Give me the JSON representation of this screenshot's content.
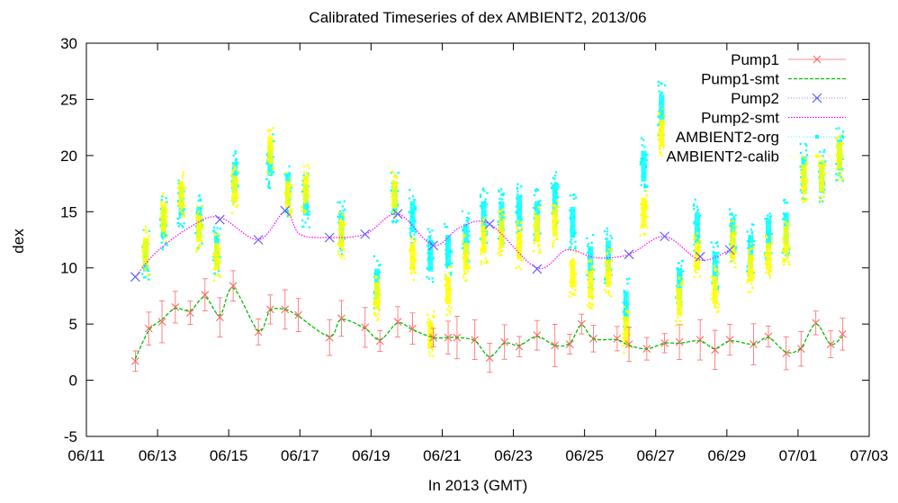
{
  "chart_data": {
    "type": "line",
    "title": "Calibrated Timeseries of dex AMBIENT2, 2013/06",
    "xlabel": "In 2013 (GMT)",
    "ylabel": "dex",
    "xlim": [
      "2013-06-11",
      "2013-07-03"
    ],
    "ylim": [
      -5,
      30
    ],
    "x_ticks": [
      "06/11",
      "06/13",
      "06/15",
      "06/17",
      "06/19",
      "06/21",
      "06/23",
      "06/25",
      "06/27",
      "06/29",
      "07/01",
      "07/03"
    ],
    "y_ticks": [
      "-5",
      "0",
      "5",
      "10",
      "15",
      "20",
      "25",
      "30"
    ],
    "legend_position": "top-right",
    "grid": false,
    "series": [
      {
        "name": "Pump1",
        "style": "points-errorbars",
        "color": "#ff6666",
        "x": [
          "2013-06-12T09:00",
          "2013-06-12T18:00",
          "2013-06-13T03:00",
          "2013-06-13T12:00",
          "2013-06-13T22:00",
          "2013-06-14T08:00",
          "2013-06-14T18:00",
          "2013-06-15T03:00",
          "2013-06-15T20:00",
          "2013-06-16T04:00",
          "2013-06-16T14:00",
          "2013-06-16T23:00",
          "2013-06-17T20:00",
          "2013-06-18T04:00",
          "2013-06-18T20:00",
          "2013-06-19T06:00",
          "2013-06-19T18:00",
          "2013-06-20T04:00",
          "2013-06-20T18:00",
          "2013-06-21T04:00",
          "2013-06-21T10:00",
          "2013-06-21T22:00",
          "2013-06-22T08:00",
          "2013-06-22T18:00",
          "2013-06-23T04:00",
          "2013-06-23T16:00",
          "2013-06-24T04:00",
          "2013-06-24T14:00",
          "2013-06-24T22:00",
          "2013-06-25T06:00",
          "2013-06-25T22:00",
          "2013-06-26T06:00",
          "2013-06-26T18:00",
          "2013-06-27T06:00",
          "2013-06-27T16:00",
          "2013-06-28T06:00",
          "2013-06-28T16:00",
          "2013-06-29T02:00",
          "2013-06-29T18:00",
          "2013-06-30T04:00",
          "2013-06-30T16:00",
          "2013-07-01T02:00",
          "2013-07-01T12:00",
          "2013-07-01T22:00",
          "2013-07-02T06:00"
        ],
        "y": [
          1.7,
          4.6,
          5.2,
          6.5,
          6.0,
          7.6,
          5.6,
          8.4,
          4.3,
          6.3,
          6.3,
          5.8,
          3.8,
          5.5,
          4.7,
          3.5,
          5.2,
          4.6,
          3.8,
          3.8,
          3.8,
          3.6,
          2.0,
          3.4,
          3.0,
          4.0,
          3.1,
          3.2,
          5.0,
          3.7,
          3.7,
          3.2,
          2.8,
          3.3,
          3.4,
          3.6,
          2.7,
          3.6,
          3.2,
          3.9,
          2.4,
          2.8,
          5.1,
          3.2,
          4.1
        ]
      },
      {
        "name": "Pump1-smt",
        "style": "dashed-line",
        "color": "#00c000",
        "x": [
          "2013-06-12T09:00",
          "2013-06-12T18:00",
          "2013-06-13T03:00",
          "2013-06-13T12:00",
          "2013-06-13T22:00",
          "2013-06-14T08:00",
          "2013-06-14T18:00",
          "2013-06-15T03:00",
          "2013-06-15T20:00",
          "2013-06-16T04:00",
          "2013-06-16T14:00",
          "2013-06-16T23:00",
          "2013-06-17T20:00",
          "2013-06-18T04:00",
          "2013-06-18T20:00",
          "2013-06-19T06:00",
          "2013-06-19T18:00",
          "2013-06-20T04:00",
          "2013-06-20T18:00",
          "2013-06-21T04:00",
          "2013-06-21T10:00",
          "2013-06-21T22:00",
          "2013-06-22T08:00",
          "2013-06-22T18:00",
          "2013-06-23T04:00",
          "2013-06-23T16:00",
          "2013-06-24T04:00",
          "2013-06-24T14:00",
          "2013-06-24T22:00",
          "2013-06-25T06:00",
          "2013-06-25T22:00",
          "2013-06-26T06:00",
          "2013-06-26T18:00",
          "2013-06-27T06:00",
          "2013-06-27T16:00",
          "2013-06-28T06:00",
          "2013-06-28T16:00",
          "2013-06-29T02:00",
          "2013-06-29T18:00",
          "2013-06-30T04:00",
          "2013-06-30T16:00",
          "2013-07-01T02:00",
          "2013-07-01T12:00",
          "2013-07-01T22:00",
          "2013-07-02T06:00"
        ],
        "y": [
          1.9,
          4.4,
          5.4,
          6.4,
          6.2,
          7.4,
          5.8,
          8.2,
          4.4,
          6.2,
          6.3,
          5.7,
          3.9,
          5.4,
          4.6,
          3.6,
          5.1,
          4.5,
          3.8,
          3.8,
          3.8,
          3.5,
          2.1,
          3.3,
          3.1,
          3.9,
          3.1,
          3.3,
          4.9,
          3.7,
          3.6,
          3.1,
          2.8,
          3.3,
          3.3,
          3.5,
          2.8,
          3.5,
          3.2,
          3.8,
          2.5,
          2.9,
          5.0,
          3.2,
          3.9
        ]
      },
      {
        "name": "Pump2",
        "style": "points",
        "color": "#6060ff",
        "x": [
          "2013-06-12T09:00",
          "2013-06-14T18:00",
          "2013-06-15T20:00",
          "2013-06-16T14:00",
          "2013-06-17T20:00",
          "2013-06-18T20:00",
          "2013-06-19T18:00",
          "2013-06-20T18:00",
          "2013-06-22T08:00",
          "2013-06-23T16:00",
          "2013-06-26T06:00",
          "2013-06-27T06:00",
          "2013-06-28T06:00",
          "2013-06-29T02:00"
        ],
        "y": [
          9.2,
          14.3,
          12.5,
          15.1,
          12.7,
          13.0,
          14.8,
          12.0,
          13.9,
          9.9,
          11.2,
          12.8,
          11.0,
          11.6
        ]
      },
      {
        "name": "Pump2-smt",
        "style": "dotted-line",
        "color": "#ff00ff",
        "x": [
          "2013-06-12T09:00",
          "2013-06-13T00:00",
          "2013-06-14T00:00",
          "2013-06-14T18:00",
          "2013-06-15T20:00",
          "2013-06-16T14:00",
          "2013-06-17T00:00",
          "2013-06-17T20:00",
          "2013-06-18T20:00",
          "2013-06-19T18:00",
          "2013-06-20T18:00",
          "2013-06-21T12:00",
          "2013-06-22T08:00",
          "2013-06-23T16:00",
          "2013-06-24T12:00",
          "2013-06-25T08:00",
          "2013-06-26T06:00",
          "2013-06-27T06:00",
          "2013-06-28T06:00",
          "2013-06-29T02:00"
        ],
        "y": [
          9.2,
          11.5,
          13.8,
          14.5,
          12.5,
          15.0,
          13.0,
          12.7,
          13.0,
          14.8,
          12.0,
          13.6,
          13.9,
          10.0,
          11.6,
          10.9,
          11.2,
          12.8,
          10.7,
          11.6
        ]
      },
      {
        "name": "AMBIENT2-org",
        "style": "dense-points",
        "color": "#00ffff",
        "x": [
          "2013-06-12T16:00",
          "2013-06-13T04:00",
          "2013-06-13T16:00",
          "2013-06-14T04:00",
          "2013-06-14T16:00",
          "2013-06-15T04:00",
          "2013-06-16T04:00",
          "2013-06-16T16:00",
          "2013-06-17T04:00",
          "2013-06-18T04:00",
          "2013-06-19T04:00",
          "2013-06-19T16:00",
          "2013-06-20T04:00",
          "2013-06-20T16:00",
          "2013-06-21T04:00",
          "2013-06-21T16:00",
          "2013-06-22T04:00",
          "2013-06-22T16:00",
          "2013-06-23T04:00",
          "2013-06-23T16:00",
          "2013-06-24T04:00",
          "2013-06-24T16:00",
          "2013-06-25T04:00",
          "2013-06-25T16:00",
          "2013-06-26T04:00",
          "2013-06-26T16:00",
          "2013-06-27T04:00",
          "2013-06-27T16:00",
          "2013-06-28T04:00",
          "2013-06-28T16:00",
          "2013-06-29T04:00",
          "2013-06-29T16:00",
          "2013-06-30T04:00",
          "2013-06-30T16:00",
          "2013-07-01T04:00",
          "2013-07-01T16:00",
          "2013-07-02T04:00"
        ],
        "y": [
          11.0,
          14.0,
          16.0,
          14.0,
          11.5,
          18.0,
          19.5,
          17.0,
          16.0,
          13.5,
          8.5,
          16.0,
          14.5,
          11.0,
          11.5,
          12.5,
          14.5,
          14.5,
          15.0,
          14.5,
          16.0,
          14.0,
          10.5,
          11.0,
          6.5,
          19.0,
          24.0,
          8.5,
          13.5,
          10.0,
          13.0,
          11.5,
          13.0,
          13.5,
          18.5,
          18.0,
          20.0
        ]
      },
      {
        "name": "AMBIENT2-calib",
        "style": "dense-points",
        "color": "#ffff00",
        "x": [
          "2013-06-12T16:00",
          "2013-06-13T04:00",
          "2013-06-13T16:00",
          "2013-06-14T04:00",
          "2013-06-14T16:00",
          "2013-06-15T04:00",
          "2013-06-16T04:00",
          "2013-06-16T16:00",
          "2013-06-17T04:00",
          "2013-06-18T04:00",
          "2013-06-19T04:00",
          "2013-06-19T16:00",
          "2013-06-20T04:00",
          "2013-06-20T16:00",
          "2013-06-21T04:00",
          "2013-06-21T16:00",
          "2013-06-22T04:00",
          "2013-06-22T16:00",
          "2013-06-23T04:00",
          "2013-06-23T16:00",
          "2013-06-24T04:00",
          "2013-06-24T16:00",
          "2013-06-25T04:00",
          "2013-06-25T16:00",
          "2013-06-26T04:00",
          "2013-06-26T16:00",
          "2013-06-27T04:00",
          "2013-06-27T16:00",
          "2013-06-28T04:00",
          "2013-06-28T16:00",
          "2013-06-29T04:00",
          "2013-06-29T16:00",
          "2013-06-30T04:00",
          "2013-06-30T16:00",
          "2013-07-01T04:00",
          "2013-07-01T16:00",
          "2013-07-02T04:00"
        ],
        "y": [
          11.5,
          14.5,
          16.5,
          13.5,
          11.0,
          17.0,
          20.5,
          16.5,
          17.0,
          13.0,
          7.5,
          16.5,
          11.0,
          4.0,
          8.0,
          11.0,
          12.5,
          13.0,
          12.0,
          13.5,
          14.0,
          9.5,
          8.5,
          9.5,
          4.5,
          15.0,
          22.0,
          7.0,
          11.0,
          8.0,
          12.0,
          10.0,
          11.0,
          12.5,
          18.0,
          18.0,
          20.0
        ]
      }
    ]
  }
}
